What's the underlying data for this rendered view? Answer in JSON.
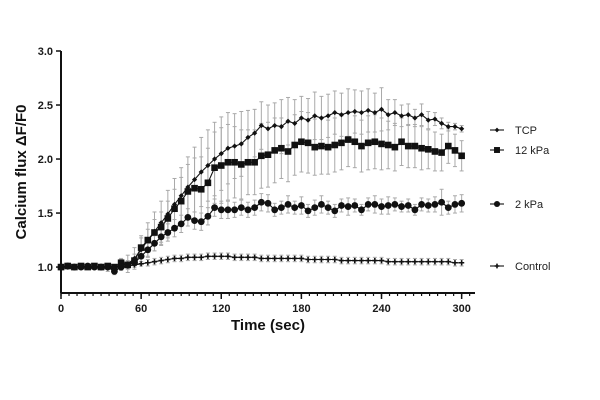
{
  "chart_data": {
    "type": "line",
    "title": "",
    "xlabel": "Time (sec)",
    "ylabel": "Calcium flux ΔF/F0",
    "xlim": [
      0,
      310
    ],
    "ylim": [
      0.76,
      3.0
    ],
    "grid": false,
    "legend_position": "right",
    "x_ticks": [
      0,
      60,
      120,
      180,
      240,
      300
    ],
    "x_tick_labels": [
      "0",
      "60",
      "120",
      "180",
      "240",
      "300"
    ],
    "x_minor_step": 6,
    "y_ticks": [
      1.0,
      1.5,
      2.0,
      2.5,
      3.0
    ],
    "y_tick_labels": [
      "1.0",
      "1.5",
      "2.0",
      "2.5",
      "3.0"
    ],
    "x": [
      0,
      5,
      10,
      15,
      20,
      25,
      30,
      35,
      40,
      45,
      50,
      55,
      60,
      65,
      70,
      75,
      80,
      85,
      90,
      95,
      100,
      105,
      110,
      115,
      120,
      125,
      130,
      135,
      140,
      145,
      150,
      155,
      160,
      165,
      170,
      175,
      180,
      185,
      190,
      195,
      200,
      205,
      210,
      215,
      220,
      225,
      230,
      235,
      240,
      245,
      250,
      255,
      260,
      265,
      270,
      275,
      280,
      285,
      290,
      295,
      300
    ],
    "series": [
      {
        "name": "TCP",
        "marker": "diamond",
        "legend_value": 2.38,
        "values": [
          1.0,
          1.01,
          1.0,
          1.01,
          1.0,
          1.0,
          1.0,
          0.99,
          0.99,
          1.02,
          1.03,
          1.08,
          1.16,
          1.25,
          1.33,
          1.41,
          1.49,
          1.58,
          1.66,
          1.74,
          1.81,
          1.88,
          1.94,
          2.0,
          2.05,
          2.1,
          2.12,
          2.14,
          2.2,
          2.24,
          2.31,
          2.28,
          2.31,
          2.3,
          2.35,
          2.33,
          2.38,
          2.36,
          2.4,
          2.38,
          2.4,
          2.43,
          2.41,
          2.43,
          2.44,
          2.43,
          2.45,
          2.43,
          2.46,
          2.41,
          2.43,
          2.4,
          2.41,
          2.38,
          2.41,
          2.36,
          2.37,
          2.33,
          2.3,
          2.3,
          2.28
        ],
        "errors": [
          0.02,
          0.02,
          0.02,
          0.02,
          0.02,
          0.02,
          0.02,
          0.03,
          0.03,
          0.05,
          0.08,
          0.1,
          0.13,
          0.16,
          0.18,
          0.2,
          0.22,
          0.24,
          0.26,
          0.28,
          0.3,
          0.32,
          0.33,
          0.34,
          0.34,
          0.33,
          0.3,
          0.3,
          0.25,
          0.22,
          0.22,
          0.22,
          0.21,
          0.25,
          0.22,
          0.22,
          0.2,
          0.2,
          0.22,
          0.2,
          0.2,
          0.2,
          0.2,
          0.22,
          0.2,
          0.2,
          0.2,
          0.18,
          0.2,
          0.14,
          0.12,
          0.1,
          0.1,
          0.08,
          0.1,
          0.08,
          0.06,
          0.05,
          0.04,
          0.03,
          0.03
        ]
      },
      {
        "name": "12 kPa",
        "marker": "square",
        "legend_value": 2.07,
        "values": [
          1.0,
          1.01,
          1.0,
          1.01,
          1.0,
          1.01,
          1.0,
          1.01,
          1.0,
          1.04,
          1.02,
          1.06,
          1.18,
          1.25,
          1.32,
          1.37,
          1.45,
          1.54,
          1.61,
          1.7,
          1.73,
          1.72,
          1.78,
          1.92,
          1.94,
          1.97,
          1.97,
          1.95,
          1.97,
          1.97,
          2.03,
          2.04,
          2.08,
          2.1,
          2.07,
          2.13,
          2.16,
          2.15,
          2.11,
          2.12,
          2.11,
          2.13,
          2.15,
          2.18,
          2.16,
          2.12,
          2.15,
          2.16,
          2.14,
          2.13,
          2.11,
          2.16,
          2.12,
          2.12,
          2.1,
          2.09,
          2.07,
          2.06,
          2.12,
          2.08,
          2.03
        ],
        "errors": [
          0.02,
          0.02,
          0.02,
          0.02,
          0.02,
          0.02,
          0.02,
          0.02,
          0.02,
          0.04,
          0.04,
          0.06,
          0.09,
          0.1,
          0.12,
          0.14,
          0.16,
          0.18,
          0.22,
          0.25,
          0.28,
          0.3,
          0.32,
          0.33,
          0.35,
          0.35,
          0.33,
          0.32,
          0.3,
          0.3,
          0.3,
          0.3,
          0.3,
          0.28,
          0.28,
          0.28,
          0.28,
          0.28,
          0.26,
          0.26,
          0.25,
          0.25,
          0.25,
          0.25,
          0.24,
          0.24,
          0.25,
          0.25,
          0.24,
          0.22,
          0.22,
          0.22,
          0.2,
          0.2,
          0.2,
          0.18,
          0.18,
          0.17,
          0.16,
          0.15,
          0.14
        ]
      },
      {
        "name": "2 kPa",
        "marker": "circle",
        "legend_value": 1.56,
        "values": [
          1.0,
          1.01,
          1.0,
          1.0,
          1.01,
          1.0,
          1.0,
          1.0,
          0.96,
          1.0,
          1.02,
          1.04,
          1.1,
          1.16,
          1.22,
          1.28,
          1.32,
          1.36,
          1.4,
          1.46,
          1.43,
          1.42,
          1.47,
          1.55,
          1.53,
          1.53,
          1.53,
          1.55,
          1.53,
          1.55,
          1.6,
          1.59,
          1.53,
          1.55,
          1.58,
          1.55,
          1.57,
          1.52,
          1.55,
          1.58,
          1.55,
          1.52,
          1.57,
          1.56,
          1.57,
          1.53,
          1.58,
          1.58,
          1.56,
          1.57,
          1.58,
          1.56,
          1.57,
          1.53,
          1.58,
          1.57,
          1.58,
          1.6,
          1.55,
          1.58,
          1.59
        ],
        "errors": [
          0.02,
          0.02,
          0.02,
          0.02,
          0.02,
          0.02,
          0.02,
          0.02,
          0.03,
          0.03,
          0.03,
          0.04,
          0.05,
          0.06,
          0.07,
          0.08,
          0.08,
          0.08,
          0.08,
          0.08,
          0.08,
          0.08,
          0.08,
          0.08,
          0.08,
          0.08,
          0.07,
          0.07,
          0.07,
          0.07,
          0.08,
          0.08,
          0.06,
          0.06,
          0.08,
          0.06,
          0.08,
          0.06,
          0.07,
          0.08,
          0.06,
          0.06,
          0.06,
          0.08,
          0.06,
          0.05,
          0.06,
          0.08,
          0.07,
          0.08,
          0.06,
          0.05,
          0.06,
          0.05,
          0.06,
          0.06,
          0.07,
          0.12,
          0.06,
          0.08,
          0.08
        ]
      },
      {
        "name": "Control",
        "marker": "cross",
        "legend_value": 1.04,
        "values": [
          1.0,
          1.0,
          1.0,
          1.0,
          1.0,
          1.0,
          1.0,
          1.0,
          1.0,
          1.0,
          1.01,
          1.02,
          1.03,
          1.04,
          1.05,
          1.06,
          1.07,
          1.08,
          1.08,
          1.09,
          1.09,
          1.09,
          1.1,
          1.1,
          1.1,
          1.1,
          1.09,
          1.09,
          1.09,
          1.09,
          1.08,
          1.08,
          1.08,
          1.08,
          1.08,
          1.08,
          1.08,
          1.07,
          1.07,
          1.07,
          1.07,
          1.07,
          1.06,
          1.06,
          1.06,
          1.06,
          1.06,
          1.06,
          1.06,
          1.05,
          1.05,
          1.05,
          1.05,
          1.05,
          1.05,
          1.05,
          1.05,
          1.05,
          1.05,
          1.04,
          1.04
        ],
        "errors": [
          0.01,
          0.01,
          0.01,
          0.01,
          0.01,
          0.01,
          0.01,
          0.01,
          0.01,
          0.01,
          0.02,
          0.02,
          0.02,
          0.03,
          0.03,
          0.03,
          0.03,
          0.03,
          0.03,
          0.03,
          0.03,
          0.03,
          0.03,
          0.03,
          0.03,
          0.03,
          0.03,
          0.03,
          0.03,
          0.03,
          0.03,
          0.03,
          0.03,
          0.03,
          0.03,
          0.03,
          0.03,
          0.03,
          0.03,
          0.03,
          0.03,
          0.03,
          0.03,
          0.03,
          0.03,
          0.03,
          0.03,
          0.03,
          0.03,
          0.03,
          0.03,
          0.03,
          0.03,
          0.03,
          0.03,
          0.03,
          0.03,
          0.03,
          0.03,
          0.03,
          0.03
        ]
      }
    ]
  },
  "colors": {
    "line": "#111111",
    "error_bar": "#a9a9a9",
    "axis": "#111111"
  }
}
